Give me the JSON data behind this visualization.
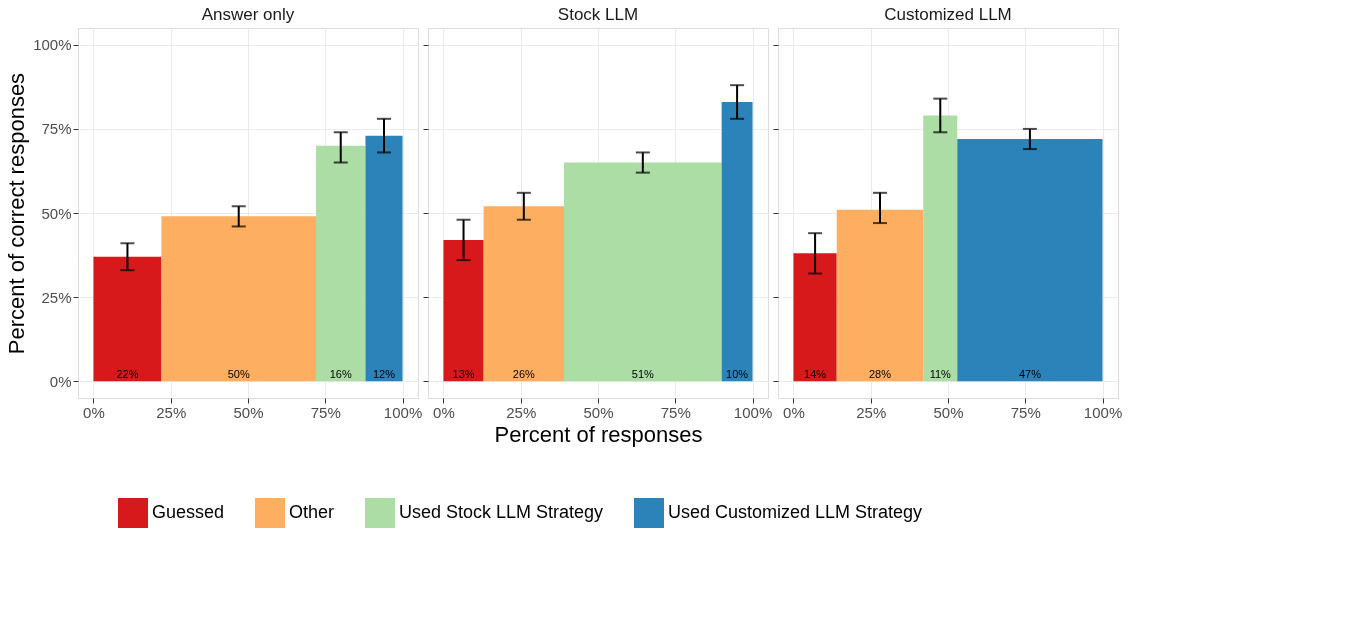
{
  "chart_data": [
    {
      "type": "histogram",
      "title": "Answer only",
      "ylabel": "Percent of correct responses",
      "xlim": [
        -5,
        105
      ],
      "ylim": [
        -5,
        105
      ],
      "xticks": [
        {
          "value": 0,
          "label": "0%"
        },
        {
          "value": 25,
          "label": "25%"
        },
        {
          "value": 50,
          "label": "50%"
        },
        {
          "value": 75,
          "label": "75%"
        },
        {
          "value": 100,
          "label": "100%"
        }
      ],
      "yticks": [
        {
          "value": 0,
          "label": "0%"
        },
        {
          "value": 25,
          "label": "25%"
        },
        {
          "value": 50,
          "label": "50%"
        },
        {
          "value": 75,
          "label": "75%"
        },
        {
          "value": 100,
          "label": "100%"
        }
      ],
      "grid": true,
      "legend": "bottom",
      "bins": [
        0,
        22,
        72,
        88,
        100
      ],
      "series": [
        {
          "name": "Guessed",
          "color": "#d7191c",
          "values": [
            37,
            null,
            null,
            null
          ],
          "errors": [
            [
              33,
              41
            ],
            null,
            null,
            null
          ]
        },
        {
          "name": "Other",
          "color": "#fdae61",
          "values": [
            null,
            49,
            null,
            null
          ],
          "errors": [
            null,
            [
              46,
              52
            ],
            null,
            null
          ]
        },
        {
          "name": "Used Stock LLM Strategy",
          "color": "#abdda4",
          "values": [
            null,
            null,
            70,
            null
          ],
          "errors": [
            null,
            null,
            [
              65,
              74
            ],
            null
          ]
        },
        {
          "name": "Used Customized LLM Strategy",
          "color": "#2b83ba",
          "values": [
            null,
            null,
            null,
            73
          ],
          "errors": [
            null,
            null,
            null,
            [
              68,
              78
            ]
          ]
        }
      ],
      "annotations": [
        {
          "text": "22%",
          "x": 11,
          "y": 0
        },
        {
          "text": "50%",
          "x": 47,
          "y": 0
        },
        {
          "text": "16%",
          "x": 80,
          "y": 0
        },
        {
          "text": "12%",
          "x": 94,
          "y": 0
        }
      ]
    },
    {
      "type": "histogram",
      "title": "Stock LLM",
      "xlabel": "Percent of responses",
      "xlim": [
        -5,
        105
      ],
      "ylim": [
        -5,
        105
      ],
      "xticks": [
        {
          "value": 0,
          "label": "0%"
        },
        {
          "value": 25,
          "label": "25%"
        },
        {
          "value": 50,
          "label": "50%"
        },
        {
          "value": 75,
          "label": "75%"
        },
        {
          "value": 100,
          "label": "100%"
        }
      ],
      "yticks": [
        0,
        25,
        50,
        75,
        100
      ],
      "tick_labels": "x",
      "grid": true,
      "bins": [
        0,
        13,
        39,
        90,
        100
      ],
      "series": [
        {
          "color": "#d7191c",
          "values": [
            42,
            null,
            null,
            null
          ],
          "errors": [
            [
              36,
              48
            ],
            null,
            null,
            null
          ]
        },
        {
          "color": "#fdae61",
          "values": [
            null,
            52,
            null,
            null
          ],
          "errors": [
            null,
            [
              48,
              56
            ],
            null,
            null
          ]
        },
        {
          "color": "#abdda4",
          "values": [
            null,
            null,
            65,
            null
          ],
          "errors": [
            null,
            null,
            [
              62,
              68
            ],
            null
          ]
        },
        {
          "color": "#2b83ba",
          "values": [
            null,
            null,
            null,
            83
          ],
          "errors": [
            null,
            null,
            null,
            [
              78,
              88
            ]
          ]
        }
      ],
      "annotations": [
        {
          "text": "13%",
          "x": 6.5,
          "y": 0
        },
        {
          "text": "26%",
          "x": 26,
          "y": 0
        },
        {
          "text": "51%",
          "x": 64.5,
          "y": 0
        },
        {
          "text": "10%",
          "x": 95,
          "y": 0
        }
      ]
    },
    {
      "type": "histogram",
      "title": "Customized LLM",
      "xlim": [
        -5,
        105
      ],
      "ylim": [
        -5,
        105
      ],
      "xticks": [
        {
          "value": 0,
          "label": "0%"
        },
        {
          "value": 25,
          "label": "25%"
        },
        {
          "value": 50,
          "label": "50%"
        },
        {
          "value": 75,
          "label": "75%"
        },
        {
          "value": 100,
          "label": "100%"
        }
      ],
      "yticks": [
        0,
        25,
        50,
        75,
        100
      ],
      "tick_labels": "x",
      "grid": true,
      "bins": [
        0,
        14,
        42,
        53,
        100
      ],
      "series": [
        {
          "color": "#d7191c",
          "values": [
            38,
            null,
            null,
            null
          ],
          "errors": [
            [
              32,
              44
            ],
            null,
            null,
            null
          ]
        },
        {
          "color": "#fdae61",
          "values": [
            null,
            51,
            null,
            null
          ],
          "errors": [
            null,
            [
              47,
              56
            ],
            null,
            null
          ]
        },
        {
          "color": "#abdda4",
          "values": [
            null,
            null,
            79,
            null
          ],
          "errors": [
            null,
            null,
            [
              74,
              84
            ],
            null
          ]
        },
        {
          "color": "#2b83ba",
          "values": [
            null,
            null,
            null,
            72
          ],
          "errors": [
            null,
            null,
            null,
            [
              69,
              75
            ]
          ]
        }
      ],
      "annotations": [
        {
          "text": "14%",
          "x": 7,
          "y": 0
        },
        {
          "text": "28%",
          "x": 28,
          "y": 0
        },
        {
          "text": "11%",
          "x": 47.5,
          "y": 0
        },
        {
          "text": "47%",
          "x": 76.5,
          "y": 0
        }
      ]
    }
  ]
}
